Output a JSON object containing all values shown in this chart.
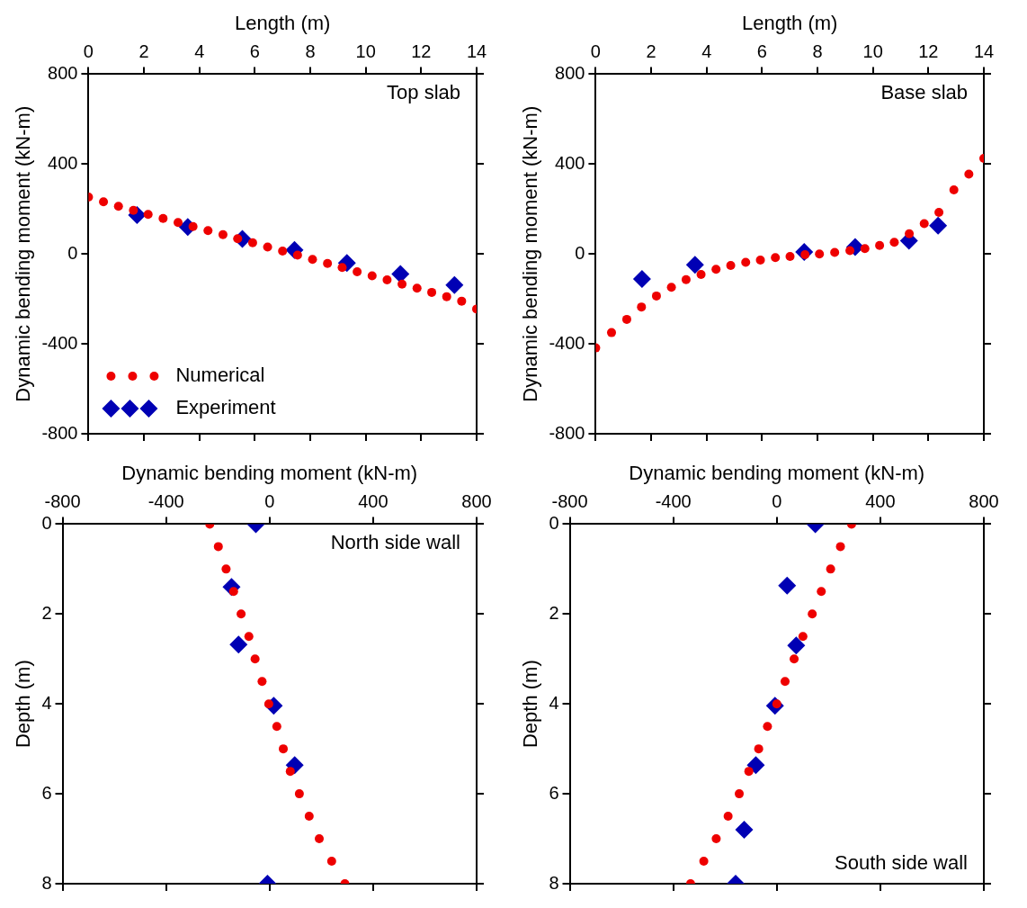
{
  "chart_data": [
    {
      "type": "scatter",
      "xlabel": "Length (m)",
      "ylabel": "Dynamic bending moment (kN-m)",
      "xlim": [
        0,
        14
      ],
      "xticks": [
        0,
        2,
        4,
        6,
        8,
        10,
        12,
        14
      ],
      "ylim": [
        -800,
        800
      ],
      "yticks": [
        -800,
        -400,
        0,
        400,
        800
      ],
      "grid": false,
      "legend": "bottom left",
      "annotations": [
        "Top slab"
      ],
      "series": [
        {
          "name": "Numerical",
          "color": "#ee0000",
          "marker": "circle",
          "x": [
            0,
            0.54,
            1.08,
            1.62,
            2.15,
            2.69,
            3.23,
            3.77,
            4.31,
            4.85,
            5.38,
            5.92,
            6.46,
            7.0,
            7.54,
            8.08,
            8.62,
            9.15,
            9.69,
            10.23,
            10.77,
            11.31,
            11.85,
            12.38,
            12.92,
            13.46,
            14.0
          ],
          "values": [
            253,
            232,
            212,
            194,
            176,
            158,
            140,
            122,
            104,
            86,
            68,
            50,
            31,
            13,
            -5,
            -24,
            -42,
            -60,
            -79,
            -97,
            -115,
            -134,
            -152,
            -171,
            -190,
            -210,
            -245
          ]
        },
        {
          "name": "Experiment",
          "color": "#0000b4",
          "marker": "diamond",
          "x": [
            1.75,
            3.58,
            5.55,
            7.43,
            9.32,
            11.25,
            13.2
          ],
          "values": [
            173,
            120,
            67,
            18,
            -40,
            -89,
            -138
          ]
        }
      ]
    },
    {
      "type": "scatter",
      "xlabel": "Length (m)",
      "ylabel": "Dynamic bending moment (kN-m)",
      "xlim": [
        0,
        14
      ],
      "xticks": [
        0,
        2,
        4,
        6,
        8,
        10,
        12,
        14
      ],
      "ylim": [
        -800,
        800
      ],
      "yticks": [
        -800,
        -400,
        0,
        400,
        800
      ],
      "grid": false,
      "annotations": [
        "Base slab"
      ],
      "series": [
        {
          "color": "#ee0000",
          "marker": "circle",
          "x": [
            0,
            0.57,
            1.12,
            1.65,
            2.19,
            2.73,
            3.26,
            3.8,
            4.34,
            4.87,
            5.41,
            5.94,
            6.48,
            7.01,
            7.55,
            8.07,
            8.62,
            9.17,
            9.71,
            10.24,
            10.77,
            11.31,
            11.85,
            12.38,
            12.92,
            13.46,
            14.0
          ],
          "values": [
            -418,
            -350,
            -291,
            -236,
            -187,
            -148,
            -114,
            -91,
            -68,
            -51,
            -37,
            -27,
            -16,
            -11,
            -3,
            0,
            7,
            15,
            24,
            38,
            52,
            90,
            135,
            185,
            285,
            355,
            425
          ]
        },
        {
          "color": "#0000b4",
          "marker": "diamond",
          "x": [
            1.67,
            3.58,
            7.52,
            9.36,
            11.3,
            12.35
          ],
          "values": [
            -111,
            -48,
            9,
            31,
            59,
            126
          ]
        }
      ]
    },
    {
      "type": "scatter",
      "xlabel": "Dynamic bending moment (kN-m)",
      "ylabel": "Depth (m)",
      "xlim": [
        -800,
        800
      ],
      "xticks": [
        -800,
        -400,
        0,
        400,
        800
      ],
      "ylim": [
        8,
        0
      ],
      "yticks": [
        0,
        2,
        4,
        6,
        8
      ],
      "grid": false,
      "annotations": [
        "North side wall"
      ],
      "series": [
        {
          "color": "#ee0000",
          "marker": "circle",
          "x": [
            -231,
            -198,
            -168,
            -139,
            -110,
            -80,
            -56,
            -29,
            -3,
            28,
            53,
            80,
            115,
            153,
            192,
            240,
            291
          ],
          "values": [
            0,
            0.5,
            1,
            1.5,
            2,
            2.5,
            3,
            3.5,
            4,
            4.5,
            5,
            5.5,
            6,
            6.5,
            7,
            7.5,
            8
          ]
        },
        {
          "color": "#0000b4",
          "marker": "diamond",
          "x": [
            -53,
            -147,
            -120,
            16,
            97,
            -8
          ],
          "values": [
            0,
            1.4,
            2.68,
            4.04,
            5.36,
            8
          ]
        }
      ]
    },
    {
      "type": "scatter",
      "xlabel": "Dynamic bending moment (kN-m)",
      "ylabel": "Depth (m)",
      "xlim": [
        -800,
        800
      ],
      "xticks": [
        -800,
        -400,
        0,
        400,
        800
      ],
      "ylim": [
        8,
        0
      ],
      "yticks": [
        0,
        2,
        4,
        6,
        8
      ],
      "grid": false,
      "annotations": [
        "South side wall"
      ],
      "series": [
        {
          "color": "#ee0000",
          "marker": "circle",
          "x": [
            289,
            246,
            208,
            172,
            137,
            101,
            67,
            32,
            0,
            -36,
            -70,
            -108,
            -145,
            -188,
            -234,
            -282,
            -333
          ],
          "values": [
            0,
            0.5,
            1,
            1.5,
            2,
            2.5,
            3,
            3.5,
            4,
            4.5,
            5,
            5.5,
            6,
            6.5,
            7,
            7.5,
            8
          ]
        },
        {
          "color": "#0000b4",
          "marker": "diamond",
          "x": [
            149,
            40,
            75,
            -7,
            -81,
            -126,
            -159
          ],
          "values": [
            0,
            1.37,
            2.7,
            4.04,
            5.36,
            6.8,
            8
          ]
        }
      ]
    }
  ]
}
